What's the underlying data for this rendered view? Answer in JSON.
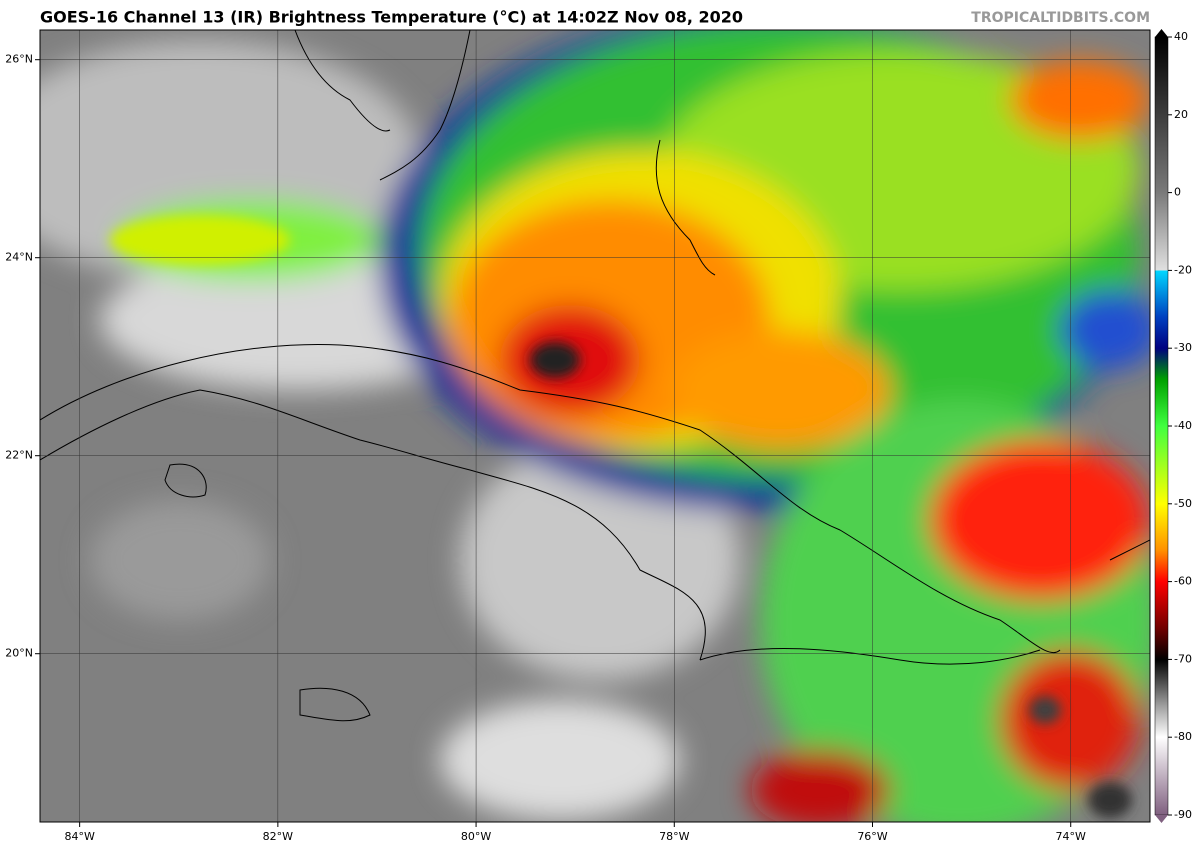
{
  "map": {
    "title": "GOES-16 Channel 13 (IR) Brightness Temperature (°C) at 14:02Z Nov 08, 2020",
    "credit": "TROPICALTIDBITS.COM",
    "lonlim": [
      -84.4,
      -73.2
    ],
    "latlim": [
      18.3,
      26.3
    ],
    "lon_ticks": [
      {
        "value": -84,
        "label": "84°W"
      },
      {
        "value": -82,
        "label": "82°W"
      },
      {
        "value": -80,
        "label": "80°W"
      },
      {
        "value": -78,
        "label": "78°W"
      },
      {
        "value": -76,
        "label": "76°W"
      },
      {
        "value": -74,
        "label": "74°W"
      }
    ],
    "lat_ticks": [
      {
        "value": 26,
        "label": "26°N"
      },
      {
        "value": 24,
        "label": "24°N"
      },
      {
        "value": 22,
        "label": "22°N"
      },
      {
        "value": 20,
        "label": "20°N"
      }
    ],
    "colorbar_ticks": [
      40,
      20,
      0,
      -20,
      -30,
      -40,
      -50,
      -60,
      -70,
      -80,
      -90
    ]
  }
}
